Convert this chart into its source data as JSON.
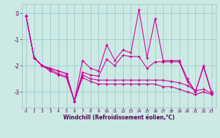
{
  "xlabel": "Windchill (Refroidissement éolien,°C)",
  "bg_color": "#cce9e4",
  "line_color": "#cc0099",
  "grid_color": "#99cccc",
  "xlim": [
    -0.5,
    23.5
  ],
  "ylim": [
    -3.6,
    0.35
  ],
  "yticks": [
    0,
    -1,
    -2,
    -3
  ],
  "xticks": [
    0,
    1,
    2,
    3,
    4,
    5,
    6,
    7,
    8,
    9,
    10,
    11,
    12,
    13,
    14,
    15,
    16,
    17,
    18,
    19,
    20,
    21,
    22,
    23
  ],
  "line1": [
    -0.1,
    -1.7,
    -2.0,
    -2.1,
    -2.2,
    -2.3,
    -3.35,
    -1.8,
    -2.1,
    -2.2,
    -1.2,
    -1.8,
    -1.4,
    -1.5,
    0.15,
    -1.7,
    -0.2,
    -1.8,
    -1.8,
    -1.8,
    -2.5,
    -3.0,
    -2.0,
    -3.0
  ],
  "line2": [
    -0.1,
    -1.7,
    -2.0,
    -2.1,
    -2.2,
    -2.3,
    -3.35,
    -2.25,
    -2.35,
    -2.4,
    -1.75,
    -2.0,
    -1.6,
    -1.65,
    -1.65,
    -2.1,
    -1.85,
    -1.85,
    -1.85,
    -1.85,
    -2.6,
    -3.0,
    -2.05,
    -3.05
  ],
  "line3": [
    -0.1,
    -1.7,
    -2.0,
    -2.15,
    -2.3,
    -2.4,
    -3.35,
    -2.35,
    -2.5,
    -2.55,
    -2.55,
    -2.55,
    -2.55,
    -2.55,
    -2.55,
    -2.55,
    -2.55,
    -2.55,
    -2.6,
    -2.65,
    -2.75,
    -2.95,
    -2.9,
    -3.05
  ],
  "line4": [
    -0.1,
    -1.7,
    -2.0,
    -2.2,
    -2.35,
    -2.45,
    -3.35,
    -2.45,
    -2.6,
    -2.7,
    -2.7,
    -2.7,
    -2.7,
    -2.7,
    -2.7,
    -2.7,
    -2.7,
    -2.8,
    -2.8,
    -2.9,
    -3.0,
    -3.1,
    -3.0,
    -3.1
  ]
}
